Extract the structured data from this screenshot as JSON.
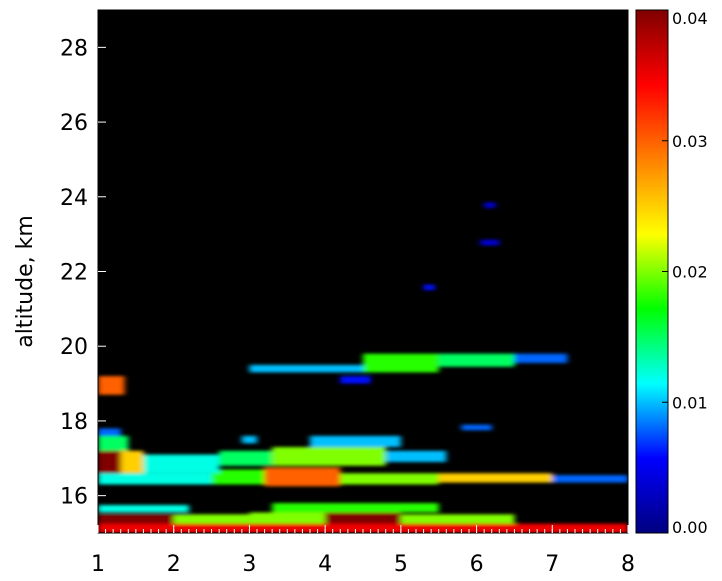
{
  "chart_data": {
    "type": "heatmap",
    "title": "",
    "xlabel": "",
    "ylabel": "altitude, km",
    "xlim": [
      1,
      8
    ],
    "ylim": [
      15,
      29
    ],
    "x_ticks": [
      "1",
      "2",
      "3",
      "4",
      "5",
      "6",
      "7",
      "8"
    ],
    "y_ticks": [
      "16",
      "18",
      "20",
      "22",
      "24",
      "26",
      "28"
    ],
    "colorbar": {
      "range": [
        0.0,
        0.04
      ],
      "ticks": [
        "0.00",
        "0.01",
        "0.02",
        "0.03",
        "0.04"
      ],
      "colormap": "rainbow",
      "colors": [
        "#000080",
        "#0000ff",
        "#00ffff",
        "#00ff00",
        "#ffff00",
        "#ff8000",
        "#ff0000",
        "#800000"
      ]
    },
    "background_color": "#000000",
    "cells": [
      {
        "x0": 1.0,
        "x1": 8.0,
        "y0": 15.0,
        "y1": 15.25,
        "v": 0.035
      },
      {
        "x0": 1.0,
        "x1": 2.0,
        "y0": 15.25,
        "y1": 15.5,
        "v": 0.04
      },
      {
        "x0": 2.0,
        "x1": 3.0,
        "y0": 15.25,
        "y1": 15.5,
        "v": 0.02
      },
      {
        "x0": 3.0,
        "x1": 4.0,
        "y0": 15.25,
        "y1": 15.55,
        "v": 0.02
      },
      {
        "x0": 4.0,
        "x1": 5.0,
        "y0": 15.25,
        "y1": 15.6,
        "v": 0.04
      },
      {
        "x0": 5.0,
        "x1": 6.5,
        "y0": 15.25,
        "y1": 15.5,
        "v": 0.02
      },
      {
        "x0": 3.3,
        "x1": 5.5,
        "y0": 15.55,
        "y1": 15.8,
        "v": 0.018
      },
      {
        "x0": 1.0,
        "x1": 2.2,
        "y0": 15.55,
        "y1": 15.75,
        "v": 0.012
      },
      {
        "x0": 1.0,
        "x1": 2.5,
        "y0": 16.3,
        "y1": 16.6,
        "v": 0.012
      },
      {
        "x0": 2.5,
        "x1": 3.2,
        "y0": 16.3,
        "y1": 16.7,
        "v": 0.018
      },
      {
        "x0": 3.2,
        "x1": 4.2,
        "y0": 16.25,
        "y1": 16.75,
        "v": 0.03
      },
      {
        "x0": 4.2,
        "x1": 5.5,
        "y0": 16.3,
        "y1": 16.6,
        "v": 0.02
      },
      {
        "x0": 5.5,
        "x1": 7.0,
        "y0": 16.35,
        "y1": 16.6,
        "v": 0.025
      },
      {
        "x0": 7.0,
        "x1": 8.0,
        "y0": 16.35,
        "y1": 16.55,
        "v": 0.008
      },
      {
        "x0": 1.0,
        "x1": 1.3,
        "y0": 16.6,
        "y1": 17.2,
        "v": 0.04
      },
      {
        "x0": 1.3,
        "x1": 1.6,
        "y0": 16.6,
        "y1": 17.2,
        "v": 0.025
      },
      {
        "x0": 1.6,
        "x1": 2.6,
        "y0": 16.6,
        "y1": 17.1,
        "v": 0.012
      },
      {
        "x0": 2.6,
        "x1": 3.3,
        "y0": 16.8,
        "y1": 17.2,
        "v": 0.015
      },
      {
        "x0": 3.3,
        "x1": 4.8,
        "y0": 16.8,
        "y1": 17.3,
        "v": 0.02
      },
      {
        "x0": 4.8,
        "x1": 5.6,
        "y0": 16.9,
        "y1": 17.2,
        "v": 0.01
      },
      {
        "x0": 3.8,
        "x1": 5.0,
        "y0": 17.3,
        "y1": 17.6,
        "v": 0.01
      },
      {
        "x0": 1.0,
        "x1": 1.4,
        "y0": 17.2,
        "y1": 17.6,
        "v": 0.015
      },
      {
        "x0": 1.0,
        "x1": 1.3,
        "y0": 17.6,
        "y1": 17.8,
        "v": 0.008
      },
      {
        "x0": 2.9,
        "x1": 3.1,
        "y0": 17.4,
        "y1": 17.6,
        "v": 0.01
      },
      {
        "x0": 5.8,
        "x1": 6.2,
        "y0": 17.75,
        "y1": 17.9,
        "v": 0.008
      },
      {
        "x0": 1.0,
        "x1": 1.35,
        "y0": 18.7,
        "y1": 19.2,
        "v": 0.03
      },
      {
        "x0": 3.0,
        "x1": 4.5,
        "y0": 19.3,
        "y1": 19.5,
        "v": 0.01
      },
      {
        "x0": 4.5,
        "x1": 5.5,
        "y0": 19.3,
        "y1": 19.8,
        "v": 0.018
      },
      {
        "x0": 5.5,
        "x1": 6.5,
        "y0": 19.45,
        "y1": 19.8,
        "v": 0.015
      },
      {
        "x0": 6.5,
        "x1": 7.2,
        "y0": 19.55,
        "y1": 19.8,
        "v": 0.008
      },
      {
        "x0": 4.2,
        "x1": 4.6,
        "y0": 19.0,
        "y1": 19.2,
        "v": 0.006
      },
      {
        "x0": 5.3,
        "x1": 5.45,
        "y0": 21.5,
        "y1": 21.65,
        "v": 0.006
      },
      {
        "x0": 6.05,
        "x1": 6.3,
        "y0": 22.7,
        "y1": 22.85,
        "v": 0.004
      },
      {
        "x0": 6.1,
        "x1": 6.25,
        "y0": 23.7,
        "y1": 23.85,
        "v": 0.004
      }
    ]
  }
}
